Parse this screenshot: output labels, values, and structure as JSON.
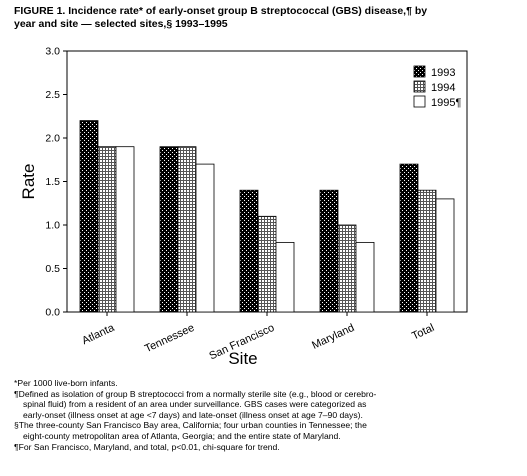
{
  "figure": {
    "title_line1": "FIGURE 1. Incidence rate* of early-onset group B streptococcal (GBS) disease,¶ by",
    "title_line2": "year and site — selected sites,§ 1993–1995"
  },
  "chart_data": {
    "type": "bar",
    "categories": [
      "Atlanta",
      "Tennessee",
      "San Francisco",
      "Maryland",
      "Total"
    ],
    "series": [
      {
        "name": "1993",
        "values": [
          2.2,
          1.9,
          1.4,
          1.4,
          1.7
        ]
      },
      {
        "name": "1994",
        "values": [
          1.9,
          1.9,
          1.1,
          1.0,
          1.4
        ]
      },
      {
        "name": "1995¶",
        "values": [
          1.9,
          1.7,
          0.8,
          0.8,
          1.3
        ]
      }
    ],
    "xlabel": "Site",
    "ylabel": "Rate",
    "ylim": [
      0,
      3.0
    ],
    "yticks": [
      "0.0",
      "0.5",
      "1.0",
      "1.5",
      "2.0",
      "2.5",
      "3.0"
    ],
    "grid": false,
    "legend_position": "top-right"
  },
  "footnotes": [
    "*Per 1000 live-born infants.",
    "¶Defined as isolation of group B streptococci from a normally sterile site (e.g., blood or cerebro-",
    "spinal fluid) from a resident of an area under surveillance. GBS cases were categorized as",
    "early-onset (illness onset at age <7 days) and late-onset (illness onset at age 7–90 days).",
    "§The three-county San Francisco Bay area, California; four urban counties in Tennessee; the",
    "eight-county metropolitan area of Atlanta, Georgia; and the entire state of Maryland.",
    "¶For San Francisco, Maryland, and total, p<0.01, chi-square for trend."
  ]
}
